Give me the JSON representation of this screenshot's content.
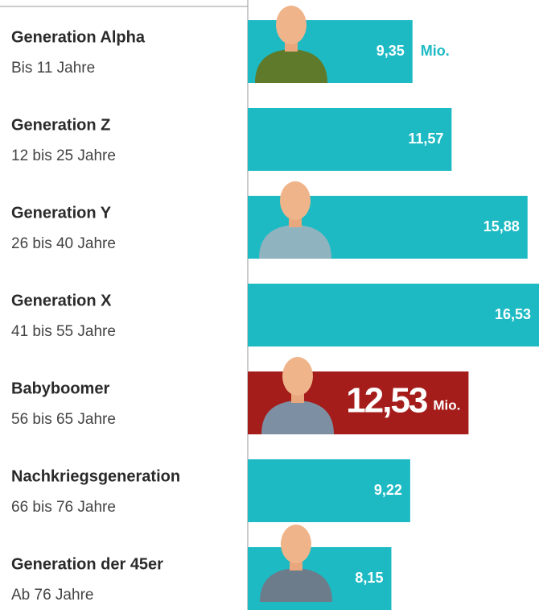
{
  "chart_data": {
    "type": "bar",
    "categories": [
      "Generation Alpha",
      "Generation Z",
      "Generation Y",
      "Generation X",
      "Babyboomer",
      "Nachkriegsgeneration",
      "Generation der 45er"
    ],
    "sublabels": [
      "Bis 11 Jahre",
      "12 bis 25 Jahre",
      "26 bis 40 Jahre",
      "41 bis 55 Jahre",
      "56 bis 65 Jahre",
      "66 bis 76 Jahre",
      "Ab 76 Jahre"
    ],
    "values": [
      9.35,
      11.57,
      15.88,
      16.53,
      12.53,
      9.22,
      8.15
    ],
    "value_labels": [
      "9,35",
      "11,57",
      "15,88",
      "16,53",
      "12,53",
      "9,22",
      "8,15"
    ],
    "unit": "Mio.",
    "unit_shown": [
      0,
      4
    ],
    "highlight": 4,
    "color": "#1dbac4",
    "highlight_color": "#a51d1b"
  }
}
